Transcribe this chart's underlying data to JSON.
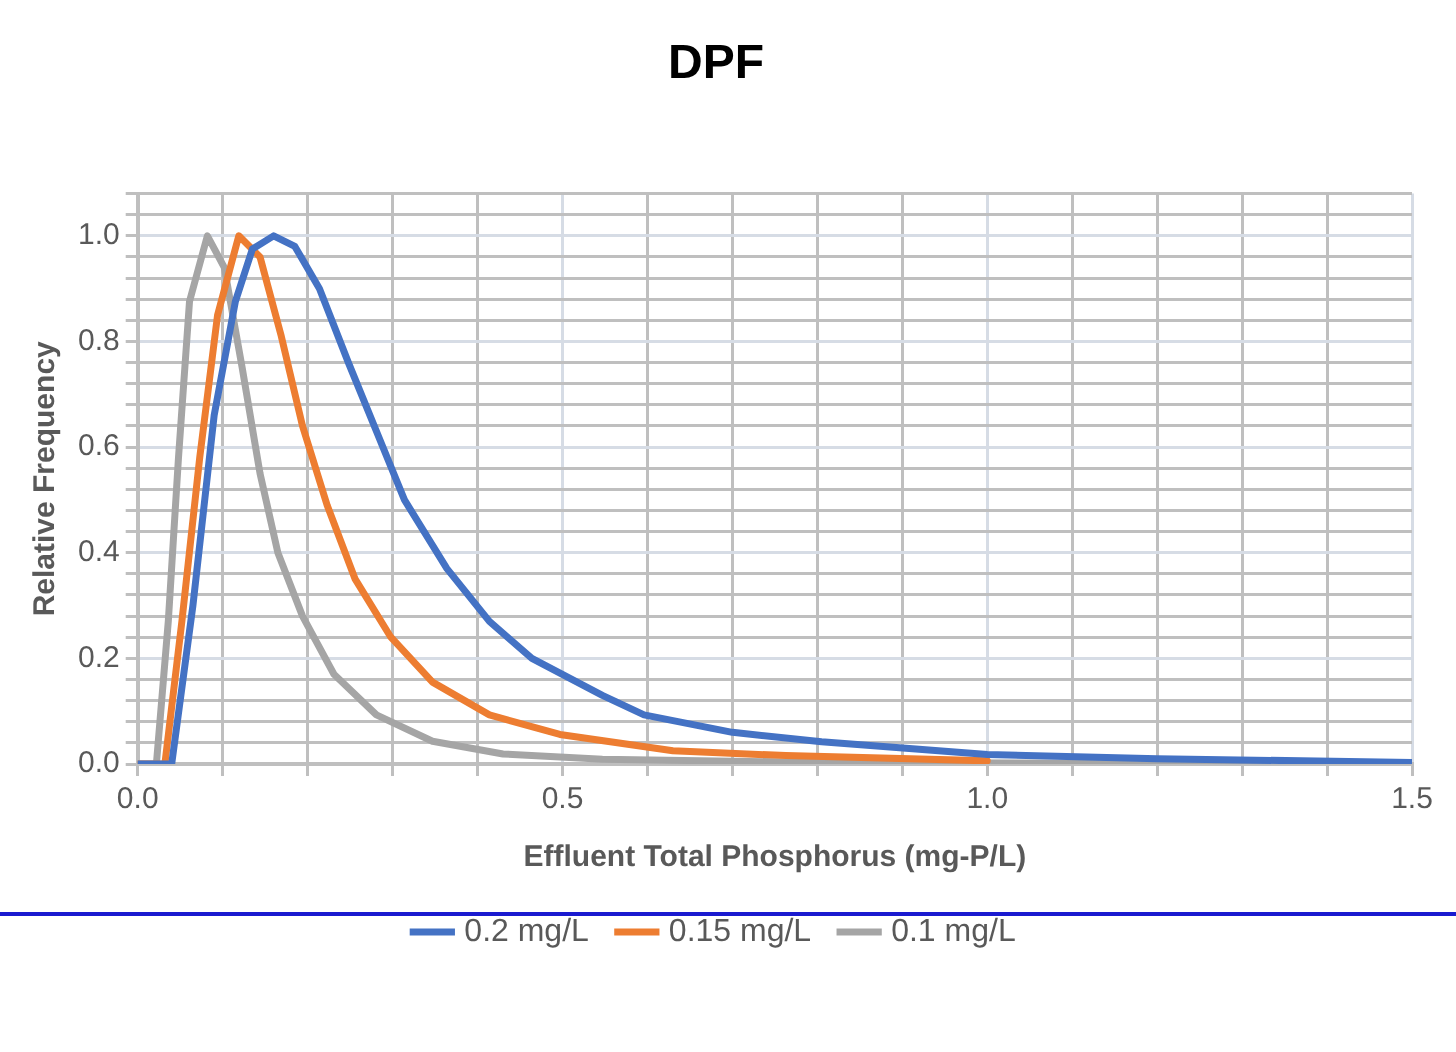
{
  "chart_data": {
    "type": "line",
    "title": "DPF",
    "xlabel": "Effluent Total Phosphorus (mg-P/L)",
    "ylabel": "Relative Frequency",
    "xlim": [
      0,
      1.5
    ],
    "ylim": [
      0,
      1.08
    ],
    "xticks": [
      {
        "value": 0,
        "label": "0.0"
      },
      {
        "value": 0.1,
        "label": null
      },
      {
        "value": 0.2,
        "label": null
      },
      {
        "value": 0.3,
        "label": null
      },
      {
        "value": 0.4,
        "label": null
      },
      {
        "value": 0.5,
        "label": "0.5"
      },
      {
        "value": 0.6,
        "label": null
      },
      {
        "value": 0.7,
        "label": null
      },
      {
        "value": 0.8,
        "label": null
      },
      {
        "value": 0.9,
        "label": null
      },
      {
        "value": 1,
        "label": "1.0"
      },
      {
        "value": 1.1,
        "label": null
      },
      {
        "value": 1.2,
        "label": null
      },
      {
        "value": 1.3,
        "label": null
      },
      {
        "value": 1.4,
        "label": null
      },
      {
        "value": 1.5,
        "label": "1.5"
      }
    ],
    "yticks": [
      {
        "value": 0,
        "label": "0.0"
      },
      {
        "value": 0.04,
        "label": null
      },
      {
        "value": 0.08,
        "label": null
      },
      {
        "value": 0.12,
        "label": null
      },
      {
        "value": 0.16,
        "label": null
      },
      {
        "value": 0.2,
        "label": "0.2"
      },
      {
        "value": 0.24,
        "label": null
      },
      {
        "value": 0.28,
        "label": null
      },
      {
        "value": 0.32,
        "label": null
      },
      {
        "value": 0.36,
        "label": null
      },
      {
        "value": 0.4,
        "label": "0.4"
      },
      {
        "value": 0.44,
        "label": null
      },
      {
        "value": 0.48,
        "label": null
      },
      {
        "value": 0.52,
        "label": null
      },
      {
        "value": 0.56,
        "label": null
      },
      {
        "value": 0.6,
        "label": "0.6"
      },
      {
        "value": 0.64,
        "label": null
      },
      {
        "value": 0.68,
        "label": null
      },
      {
        "value": 0.72,
        "label": null
      },
      {
        "value": 0.76,
        "label": null
      },
      {
        "value": 0.8,
        "label": "0.8"
      },
      {
        "value": 0.84,
        "label": null
      },
      {
        "value": 0.88,
        "label": null
      },
      {
        "value": 0.92,
        "label": null
      },
      {
        "value": 0.96,
        "label": null
      },
      {
        "value": 1,
        "label": "1.0"
      },
      {
        "value": 1.04,
        "label": null
      },
      {
        "value": 1.08,
        "label": null
      }
    ],
    "grid": true,
    "legend": "bottom",
    "marker": "none",
    "line_style": "solid",
    "series": [
      {
        "name": "0.2 mg/L",
        "color": "#4472c4",
        "x": [
          0,
          0.04,
          0.065,
          0.09,
          0.115,
          0.135,
          0.16,
          0.185,
          0.214,
          0.248,
          0.281,
          0.314,
          0.364,
          0.414,
          0.464,
          0.547,
          0.596,
          0.7,
          0.805,
          1.0,
          1.2,
          1.5
        ],
        "values": [
          0,
          0,
          0.3,
          0.66,
          0.876,
          0.975,
          1.0,
          0.98,
          0.9,
          0.76,
          0.63,
          0.5,
          0.37,
          0.27,
          0.2,
          0.13,
          0.093,
          0.06,
          0.042,
          0.018,
          0.01,
          0.003
        ]
      },
      {
        "name": "0.15 mg/L",
        "color": "#ed7d31",
        "x": [
          0,
          0.032,
          0.052,
          0.073,
          0.094,
          0.119,
          0.144,
          0.169,
          0.194,
          0.223,
          0.256,
          0.298,
          0.347,
          0.414,
          0.497,
          0.63,
          0.763,
          1.0
        ],
        "values": [
          0,
          0,
          0.27,
          0.58,
          0.85,
          1.0,
          0.96,
          0.81,
          0.64,
          0.49,
          0.35,
          0.24,
          0.155,
          0.093,
          0.056,
          0.025,
          0.016,
          0.006
        ]
      },
      {
        "name": "0.1 mg/L",
        "color": "#a5a5a5",
        "x": [
          0,
          0.022,
          0.036,
          0.048,
          0.061,
          0.082,
          0.102,
          0.123,
          0.144,
          0.165,
          0.194,
          0.231,
          0.281,
          0.347,
          0.43,
          0.547,
          0.8,
          1.5
        ],
        "values": [
          0,
          0,
          0.27,
          0.58,
          0.876,
          1.0,
          0.94,
          0.75,
          0.55,
          0.4,
          0.28,
          0.17,
          0.093,
          0.043,
          0.019,
          0.009,
          0.003,
          0
        ]
      }
    ]
  }
}
